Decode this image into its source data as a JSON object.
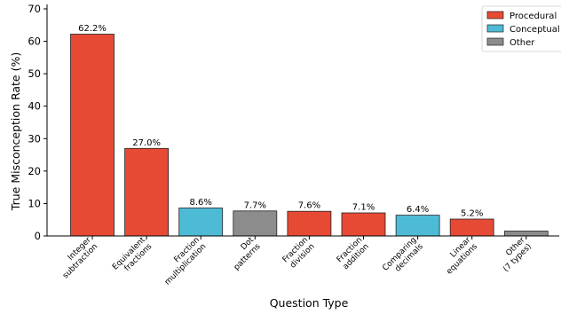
{
  "chart_data": {
    "type": "bar",
    "xlabel": "Question Type",
    "ylabel": "True Misconception Rate (%)",
    "ylim": [
      0,
      70
    ],
    "yticks": [
      0,
      10,
      20,
      30,
      40,
      50,
      60,
      70
    ],
    "grid": false,
    "legend_placement": "top-right",
    "categories": [
      [
        "Integer",
        "subtraction"
      ],
      [
        "Equivalent",
        "fractions"
      ],
      [
        "Fraction",
        "multiplication"
      ],
      [
        "Dot",
        "patterns"
      ],
      [
        "Fraction",
        "division"
      ],
      [
        "Fraction",
        "addition"
      ],
      [
        "Comparing",
        "decimals"
      ],
      [
        "Linear",
        "equations"
      ],
      [
        "Other",
        "(7 types)"
      ]
    ],
    "values": [
      62.2,
      27.0,
      8.6,
      7.7,
      7.6,
      7.1,
      6.4,
      5.2,
      1.5
    ],
    "value_labels": [
      "62.2%",
      "27.0%",
      "8.6%",
      "7.7%",
      "7.6%",
      "7.1%",
      "6.4%",
      "5.2%",
      ""
    ],
    "groups": [
      "Procedural",
      "Procedural",
      "Conceptual",
      "Other",
      "Procedural",
      "Procedural",
      "Conceptual",
      "Procedural",
      "Other"
    ],
    "legend": [
      {
        "name": "Procedural",
        "color": "#e64a35"
      },
      {
        "name": "Conceptual",
        "color": "#4dbbd5"
      },
      {
        "name": "Other",
        "color": "#8c8c8c"
      }
    ]
  }
}
